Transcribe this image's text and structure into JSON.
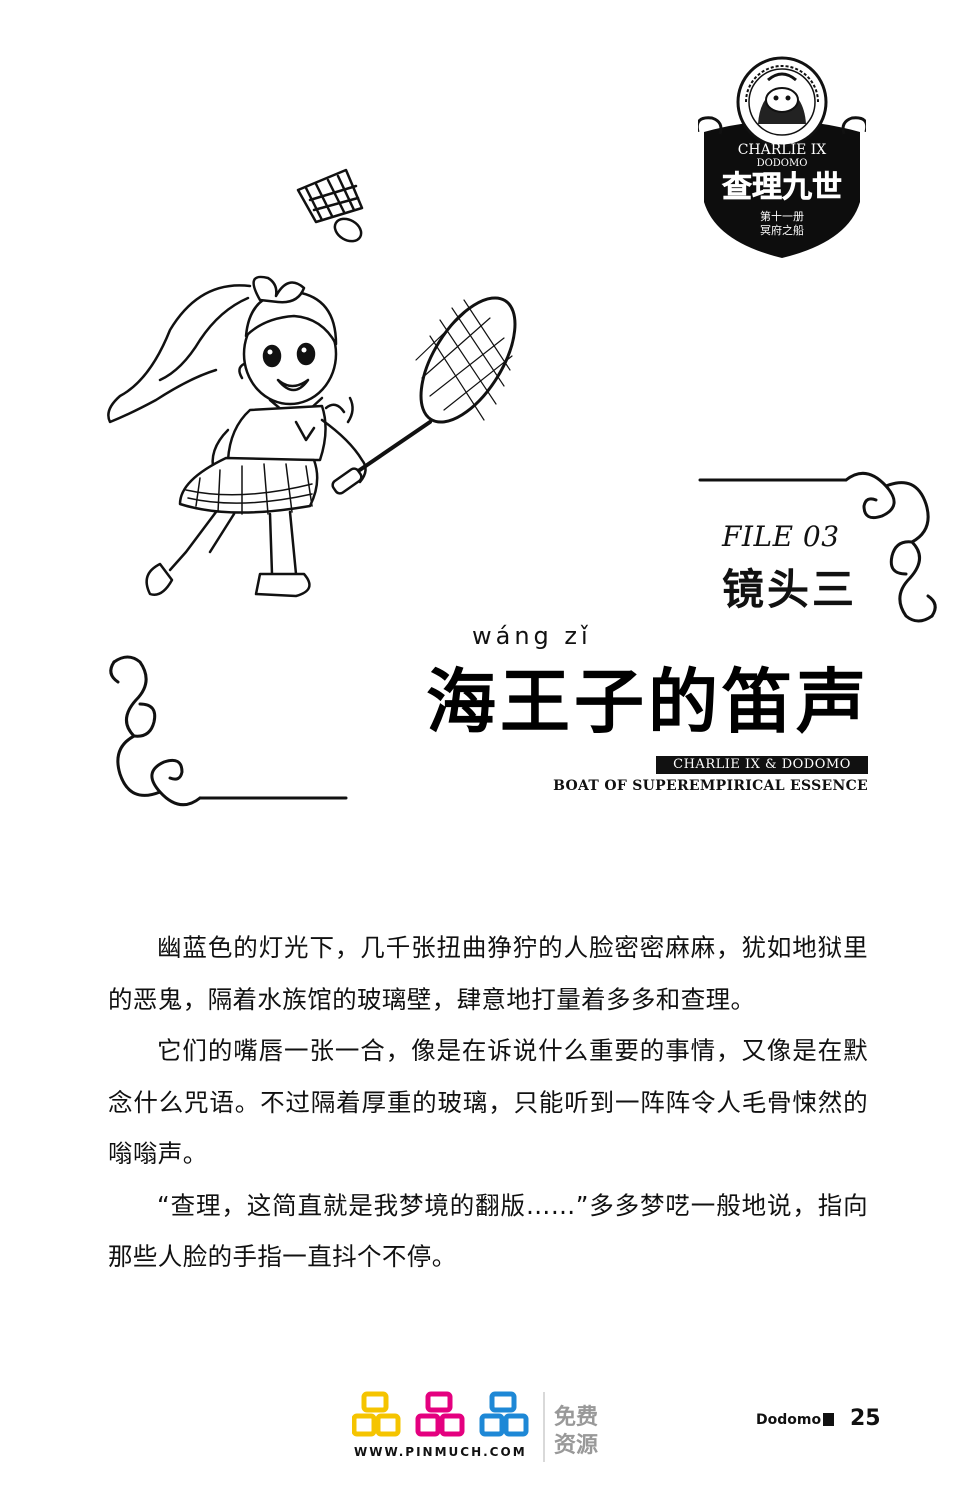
{
  "badge": {
    "series_en": "CHARLIE IX",
    "series_en2": "DODOMO",
    "title_cn": "查理九世",
    "volume": "第十一册",
    "volume_title": "冥府之船"
  },
  "file": {
    "label": "FILE 03",
    "title": "镜头三"
  },
  "chapter": {
    "pinyin": "wáng  zǐ",
    "title": "海王子的笛声",
    "series_name": "CHARLIE IX & DODOMO",
    "subtitle": "BOAT OF SUPEREMPIRICAL ESSENCE"
  },
  "paragraphs": [
    "幽蓝色的灯光下，几千张扭曲狰狞的人脸密密麻麻，犹如地狱里的恶鬼，隔着水族馆的玻璃壁，肆意地打量着多多和查理。",
    "它们的嘴唇一张一合，像是在诉说什么重要的事情，又像是在默念什么咒语。不过隔着厚重的玻璃，只能听到一阵阵令人毛骨悚然的嗡嗡声。",
    "“查理，这简直就是我梦境的翻版……”多多梦呓一般地说，指向那些人脸的手指一直抖个不停。"
  ],
  "watermark": {
    "url": "WWW.PINMUCH.COM",
    "line1": "免费",
    "line2": "资源"
  },
  "footer": {
    "runner": "Dodomo",
    "page_number": "25"
  },
  "colors": {
    "logo_yellow": "#f5c400",
    "logo_magenta": "#e4007f",
    "logo_blue": "#1e88d6"
  }
}
